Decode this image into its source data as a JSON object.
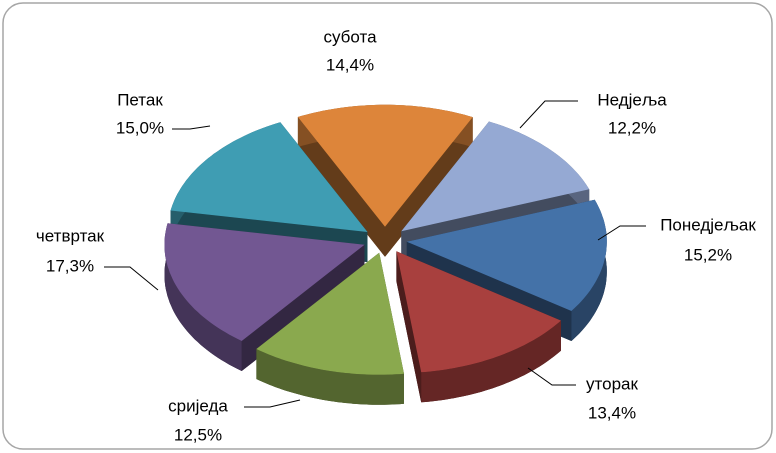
{
  "chart_data": {
    "type": "pie",
    "categories": [
      "Недјеља",
      "Понедјељак",
      "уторак",
      "сриједа",
      "четвртак",
      "Петак",
      "субота"
    ],
    "values": [
      12.2,
      15.2,
      13.4,
      12.5,
      17.3,
      15.0,
      14.4
    ],
    "value_labels": [
      "12,2%",
      "15,2%",
      "13,4%",
      "12,5%",
      "17,3%",
      "15,0%",
      "14,4%"
    ],
    "colors": [
      "#95a9d3",
      "#4472a8",
      "#a8403e",
      "#8aa94e",
      "#725792",
      "#3f9db3",
      "#dd853a"
    ]
  }
}
